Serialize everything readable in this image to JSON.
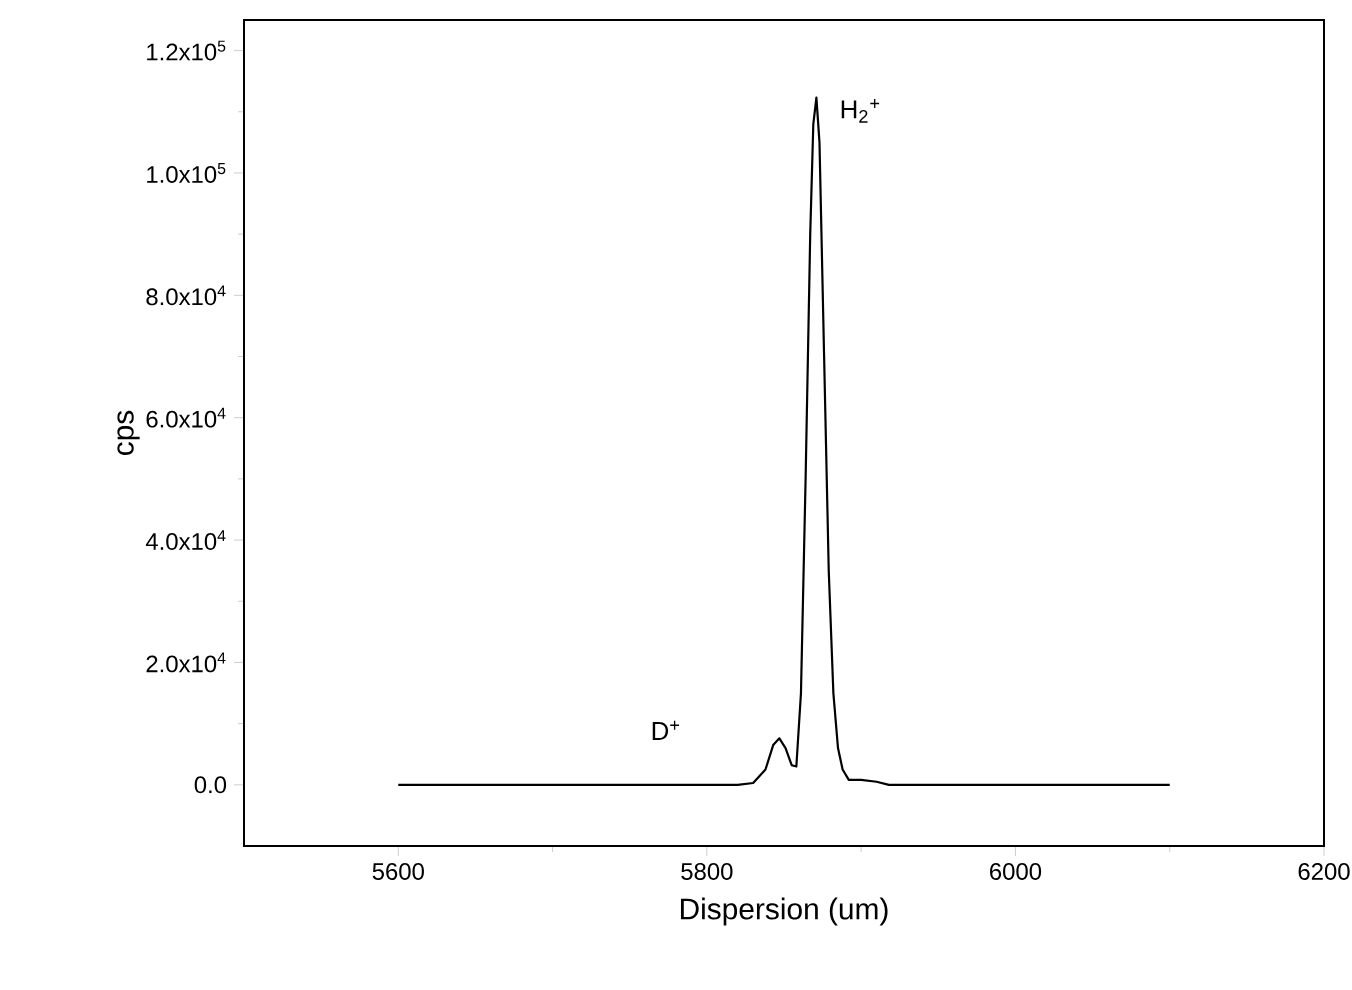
{
  "chart_data": {
    "type": "line",
    "xlabel": "Dispersion (um)",
    "ylabel": "cps",
    "xlim": [
      5500,
      6200
    ],
    "xticks": [
      5600,
      5800,
      6000,
      6200
    ],
    "ylim": [
      -10000,
      125000
    ],
    "yticks": [
      {
        "value": 0,
        "label": "0.0"
      },
      {
        "value": 20000,
        "label": "2.0x10$^{4}$"
      },
      {
        "value": 40000,
        "label": "4.0x10$^{4}$"
      },
      {
        "value": 60000,
        "label": "6.0x10$^{4}$"
      },
      {
        "value": 80000,
        "label": "8.0x10$^{4}$"
      },
      {
        "value": 100000,
        "label": "1.0x10$^{5}$"
      },
      {
        "value": 120000,
        "label": "1.2x10$^{5}$"
      }
    ],
    "grid": false,
    "marker": "none",
    "line_style": "solid",
    "series": [
      {
        "color": "#000000",
        "x": [
          5600,
          5820,
          5830,
          5838,
          5843,
          5847,
          5851,
          5855,
          5858,
          5861,
          5864,
          5867,
          5869,
          5871,
          5873,
          5876,
          5879,
          5882,
          5885,
          5888,
          5892,
          5900,
          5910,
          5918,
          6100
        ],
        "values": [
          0,
          0,
          300,
          2500,
          6500,
          7600,
          6000,
          3200,
          3000,
          15000,
          50000,
          90000,
          108000,
          112300,
          105000,
          70000,
          35000,
          15000,
          6000,
          2500,
          800,
          800,
          500,
          0,
          0
        ]
      }
    ],
    "annotations": [
      "H$_{2}$$^{+}$",
      "D$^{+}$"
    ]
  }
}
